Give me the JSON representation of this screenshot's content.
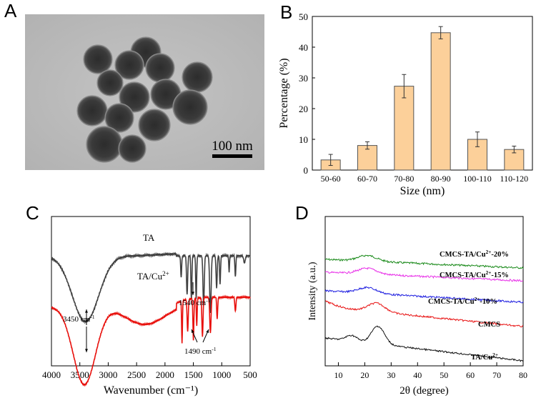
{
  "panels": {
    "a": {
      "letter": "A",
      "scale_bar": "100 nm"
    },
    "b": {
      "letter": "B"
    },
    "c": {
      "letter": "C"
    },
    "d": {
      "letter": "D"
    }
  },
  "colors": {
    "bar_fill": "#fcd09a",
    "bar_edge": "#555555",
    "ftir_ta": "#404040",
    "ftir_tacu": "#e8100c",
    "xrd_series": [
      "#1a8a1a",
      "#e831e8",
      "#2020e0",
      "#e81414",
      "#101010"
    ]
  },
  "chart_data": [
    {
      "panel": "B",
      "type": "bar",
      "categories": [
        "50-60",
        "60-70",
        "70-80",
        "80-90",
        "100-110",
        "110-120"
      ],
      "values": [
        3.3,
        8.0,
        27.3,
        44.7,
        10.0,
        6.7
      ],
      "errors": [
        1.8,
        1.2,
        3.8,
        2.0,
        2.4,
        1.1
      ],
      "xlabel": "Size (nm)",
      "ylabel": "Percentage (%)",
      "ylim": [
        0,
        50
      ],
      "yticks": [
        "0",
        "10",
        "20",
        "30",
        "40",
        "50"
      ]
    },
    {
      "panel": "C",
      "type": "line",
      "xlabel": "Wavenumber (cm⁻¹)",
      "xlim": [
        4000,
        500
      ],
      "xticks": [
        "4000",
        "3500",
        "3000",
        "2500",
        "2000",
        "1500",
        "1000",
        "500"
      ],
      "series": [
        {
          "name": "TA",
          "label": "TA"
        },
        {
          "name": "TA/Cu2+",
          "label": "TA/Cu",
          "label_sup": "2+"
        }
      ],
      "annotations": [
        {
          "base": "3450 cm",
          "sup": "-1"
        },
        {
          "base": "1540 cm",
          "sup": "-1"
        },
        {
          "base": "1490 cm",
          "sup": "-1"
        }
      ]
    },
    {
      "panel": "D",
      "type": "line",
      "xlabel": "2θ (degree)",
      "ylabel": "Intensity (a.u.)",
      "xlim": [
        5,
        80
      ],
      "xticks": [
        "10",
        "20",
        "30",
        "40",
        "50",
        "60",
        "70",
        "80"
      ],
      "series": [
        {
          "name": "CMCS-TA/Cu2+-20%",
          "label_pre": "CMCS-TA/Cu",
          "label_sup": "2+",
          "label_post": "-20%"
        },
        {
          "name": "CMCS-TA/Cu2+-15%",
          "label_pre": "CMCS-TA/Cu",
          "label_sup": "2+",
          "label_post": "-15%"
        },
        {
          "name": "CMCS-TA/Cu2+-10%",
          "label_pre": "CMCS-TA/Cu",
          "label_sup": "2+",
          "label_post": "-10%"
        },
        {
          "name": "CMCS",
          "label_pre": "CMCS",
          "label_sup": "",
          "label_post": ""
        },
        {
          "name": "TA/Cu2+",
          "label_pre": "TA/Cu",
          "label_sup": "2+",
          "label_post": ""
        }
      ]
    }
  ]
}
